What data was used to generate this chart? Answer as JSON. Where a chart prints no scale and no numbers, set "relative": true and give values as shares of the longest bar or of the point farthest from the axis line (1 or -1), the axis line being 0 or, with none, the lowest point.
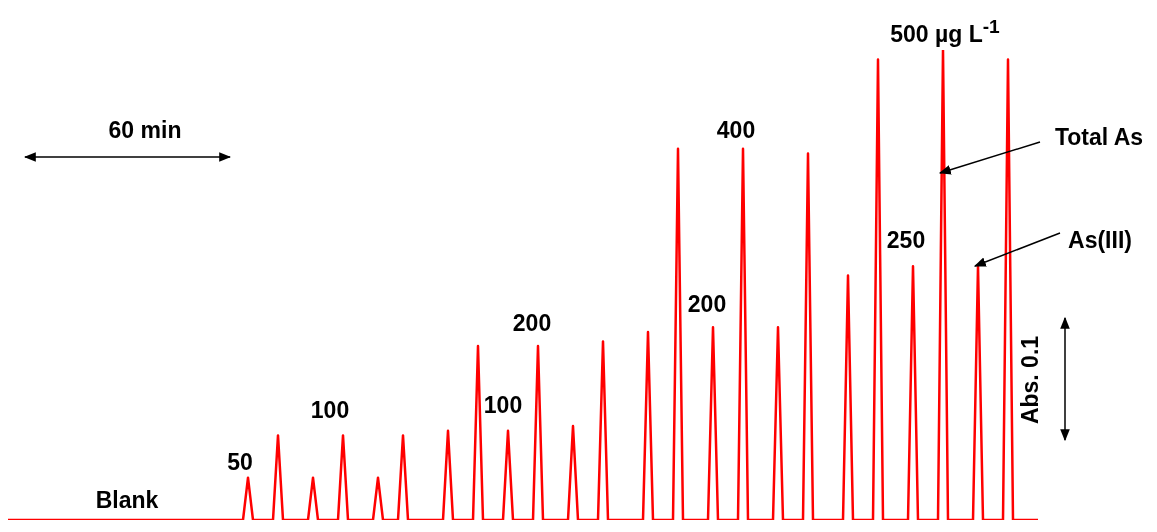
{
  "chart_data": {
    "type": "line",
    "relative": true,
    "categories": [
      null,
      null,
      null,
      null,
      null,
      null,
      null,
      null,
      null,
      null,
      null,
      null,
      null,
      null,
      null,
      null,
      null,
      null,
      null,
      null,
      null,
      null,
      null,
      null,
      null,
      null,
      null,
      null,
      null,
      null,
      null,
      null,
      null,
      null,
      null,
      null,
      null,
      null,
      null,
      null,
      null,
      null,
      null,
      null,
      null,
      null,
      null,
      null,
      null,
      null,
      null,
      null,
      null,
      null,
      null,
      null,
      null,
      null,
      null,
      null,
      null,
      null,
      null,
      null,
      null,
      null,
      null,
      null,
      null,
      null,
      null,
      null,
      null,
      null,
      null,
      null,
      null,
      null,
      null,
      null,
      null,
      null,
      null,
      null,
      null,
      null,
      null,
      null,
      null,
      null,
      null,
      null,
      null,
      null,
      null,
      null,
      null,
      null,
      null,
      null,
      null,
      null,
      null,
      null,
      null,
      null,
      null,
      null,
      null,
      null,
      null,
      null,
      null,
      null,
      null,
      null,
      null,
      null,
      null,
      null,
      null,
      null,
      null,
      null,
      null,
      null,
      null,
      null,
      null,
      null,
      null,
      null,
      null,
      null,
      null,
      null,
      null,
      null,
      null,
      null,
      null,
      null,
      null,
      null,
      null,
      null,
      null,
      null,
      null,
      null,
      null,
      null,
      null,
      null,
      null,
      null,
      null,
      null,
      null,
      null,
      null,
      null,
      null,
      null,
      null,
      null,
      null,
      null,
      null,
      null,
      null,
      null,
      null,
      null,
      null,
      null,
      null,
      null,
      null,
      null,
      null,
      null,
      null,
      null,
      null,
      null,
      null,
      null,
      null,
      null,
      null,
      null,
      null,
      null,
      null,
      null,
      null,
      null,
      null,
      null,
      null,
      null,
      null,
      null,
      null,
      null,
      null
    ],
    "series": [
      {
        "color": "#ff0000",
        "values": [
          0,
          0,
          0,
          0,
          0,
          0,
          0,
          0,
          0,
          0,
          0,
          0,
          0,
          0,
          0,
          0,
          0,
          0,
          0,
          0,
          0,
          0,
          0,
          0,
          0,
          0,
          0,
          0,
          0,
          0,
          0,
          0,
          0,
          0,
          0,
          0,
          0,
          0,
          0,
          0,
          0,
          0,
          0,
          0,
          0,
          0,
          0,
          0,
          0.09,
          0,
          0,
          0,
          0,
          0,
          0.18,
          0,
          0,
          0,
          0,
          0,
          0,
          0.09,
          0,
          0,
          0,
          0,
          0,
          0.18,
          0,
          0,
          0,
          0,
          0,
          0,
          0.09,
          0,
          0,
          0,
          0,
          0.18,
          0,
          0,
          0,
          0,
          0,
          0,
          0,
          0,
          0.19,
          0,
          0,
          0,
          0,
          0,
          0.37,
          0,
          0,
          0,
          0,
          0,
          0.19,
          0,
          0,
          0,
          0,
          0,
          0.37,
          0,
          0,
          0,
          0,
          0,
          0,
          0.2,
          0,
          0,
          0,
          0,
          0,
          0.38,
          0,
          0,
          0,
          0,
          0,
          0,
          0,
          0,
          0.4,
          0,
          0,
          0,
          0,
          0,
          0.79,
          0,
          0,
          0,
          0,
          0,
          0,
          0.41,
          0,
          0,
          0,
          0,
          0,
          0.79,
          0,
          0,
          0,
          0,
          0,
          0,
          0.41,
          0,
          0,
          0,
          0,
          0,
          0.78,
          0,
          0,
          0,
          0,
          0,
          0,
          0,
          0.52,
          0,
          0,
          0,
          0,
          0,
          0.98,
          0,
          0,
          0,
          0,
          0,
          0,
          0.54,
          0,
          0,
          0,
          0,
          0,
          1,
          0,
          0,
          0,
          0,
          0,
          0,
          0.54,
          0,
          0,
          0,
          0,
          0,
          0.98,
          0,
          0,
          0,
          0,
          0,
          0
        ]
      }
    ],
    "annotations": [
      "500 µg L$^{-1}$",
      "60 min",
      "400",
      "Total As",
      "As(III)",
      "250",
      "200",
      "200",
      "100",
      "100",
      "Abs. 0.1",
      "50",
      "Blank"
    ]
  }
}
